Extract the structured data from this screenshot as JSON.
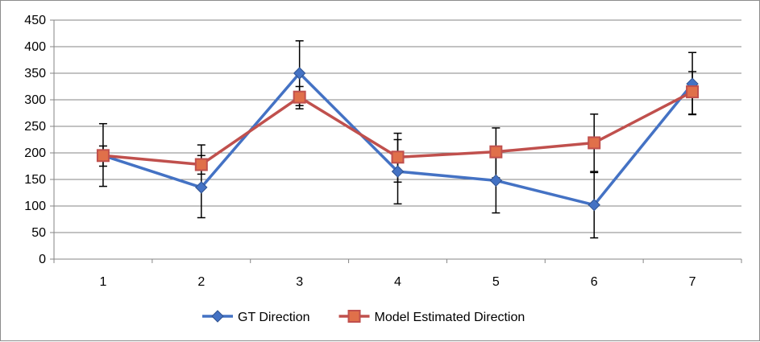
{
  "chart_data": {
    "type": "line",
    "title": "",
    "xlabel": "",
    "ylabel": "",
    "categories": [
      "1",
      "2",
      "3",
      "4",
      "5",
      "6",
      "7"
    ],
    "ylim": [
      0,
      450
    ],
    "yticks": [
      "0",
      "50",
      "100",
      "150",
      "200",
      "250",
      "300",
      "350",
      "400",
      "450"
    ],
    "grid": "horizontal",
    "legend_position": "bottom",
    "series": [
      {
        "name": "GT Direction",
        "color": "#4472c4",
        "marker": "diamond",
        "values": [
          195,
          135,
          350,
          165,
          148,
          102,
          330
        ],
        "error_low": [
          137,
          78,
          289,
          104,
          87,
          40,
          272
        ],
        "error_high": [
          255,
          195,
          411,
          225,
          210,
          163,
          389
        ]
      },
      {
        "name": "Model Estimated Direction",
        "color": "#c0504d",
        "marker": "square",
        "values": [
          195,
          178,
          305,
          192,
          202,
          219,
          315
        ],
        "error_low": [
          175,
          160,
          283,
          145,
          153,
          165,
          273
        ],
        "error_high": [
          213,
          215,
          325,
          237,
          247,
          273,
          353
        ]
      }
    ]
  }
}
